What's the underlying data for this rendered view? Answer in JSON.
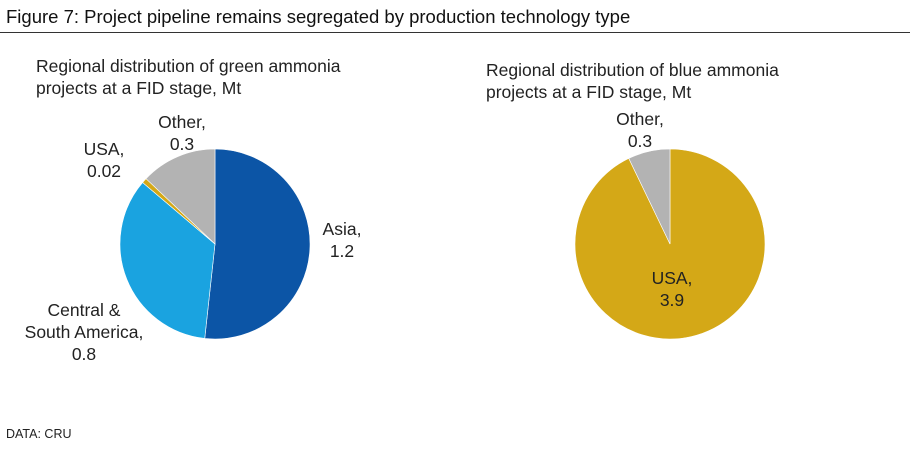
{
  "figure": {
    "title": "Figure 7: Project pipeline remains segregated by production technology type",
    "source": "DATA: CRU"
  },
  "chart_data": [
    {
      "type": "pie",
      "title_lines": [
        "Regional distribution of green ammonia",
        "projects at a FID stage, Mt"
      ],
      "unit": "Mt",
      "slices": [
        {
          "label_lines": [
            "Asia,",
            "1.2"
          ],
          "value": 1.2,
          "color": "#0c55a6"
        },
        {
          "label_lines": [
            "Central &",
            "South America,",
            "0.8"
          ],
          "value": 0.8,
          "color": "#1aa3e0"
        },
        {
          "label_lines": [
            "USA,",
            "0.02"
          ],
          "value": 0.02,
          "color": "#d4a817"
        },
        {
          "label_lines": [
            "Other,",
            "0.3"
          ],
          "value": 0.3,
          "color": "#b3b3b3"
        }
      ]
    },
    {
      "type": "pie",
      "title_lines": [
        "Regional distribution of blue ammonia",
        "projects at a FID stage, Mt"
      ],
      "unit": "Mt",
      "slices": [
        {
          "label_lines": [
            "USA,",
            "3.9"
          ],
          "value": 3.9,
          "color": "#d4a817"
        },
        {
          "label_lines": [
            "Other,",
            "0.3"
          ],
          "value": 0.3,
          "color": "#b3b3b3"
        }
      ]
    }
  ]
}
